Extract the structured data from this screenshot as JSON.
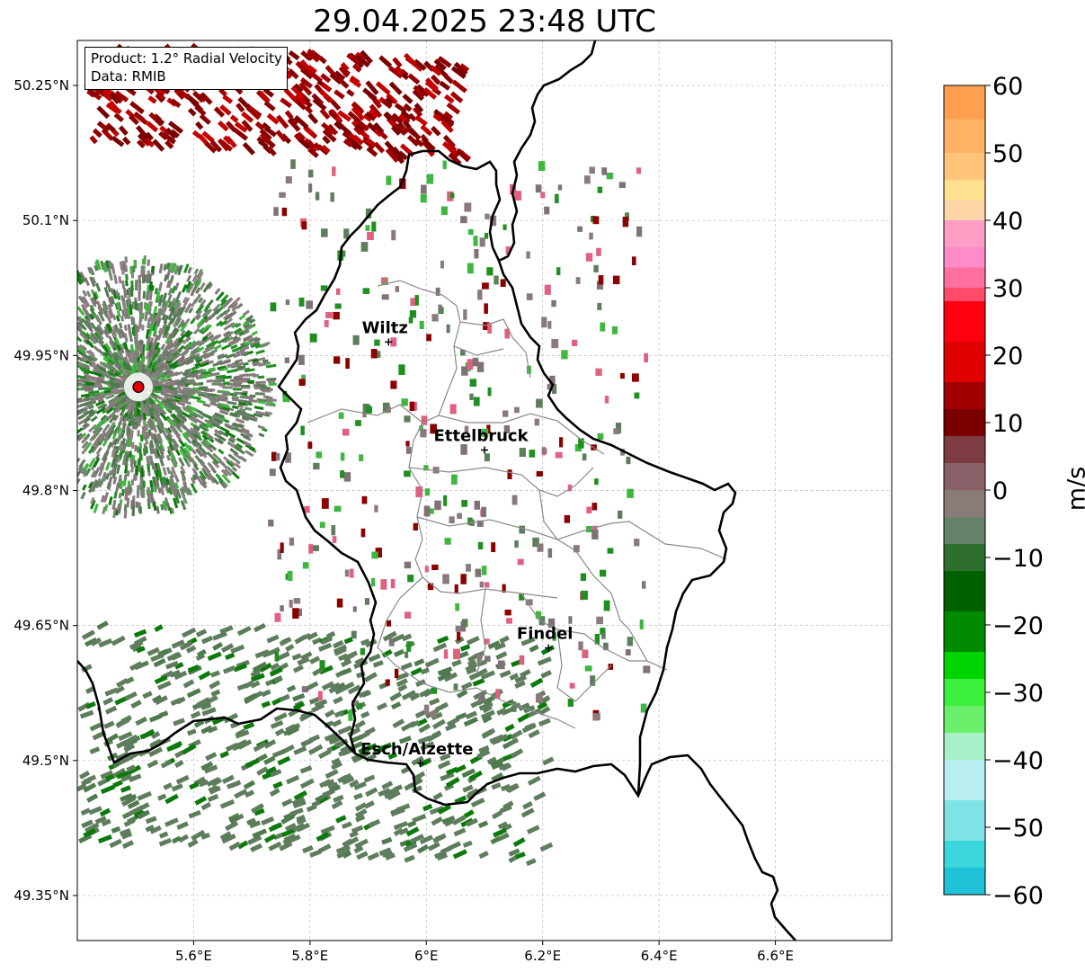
{
  "title": "29.04.2025 23:48 UTC",
  "info_box": {
    "product": "Product: 1.2° Radial Velocity",
    "source": "Data: RMIB"
  },
  "map": {
    "lon_range": [
      5.4,
      6.8
    ],
    "lat_range": [
      49.3,
      50.3
    ],
    "lon_ticks": [
      "5.6°E",
      "5.8°E",
      "6°E",
      "6.2°E",
      "6.4°E",
      "6.6°E"
    ],
    "lat_ticks": [
      "50.25°N",
      "50.1°N",
      "49.95°N",
      "49.8°N",
      "49.65°N",
      "49.5°N",
      "49.35°N"
    ],
    "grid": true,
    "radar_site": {
      "lon": 5.505,
      "lat": 49.915,
      "color": "#e00000"
    },
    "cities": [
      {
        "name": "Wiltz",
        "lon": 5.935,
        "lat": 49.965
      },
      {
        "name": "Ettelbruck",
        "lon": 6.1,
        "lat": 49.845
      },
      {
        "name": "Findel",
        "lon": 6.21,
        "lat": 49.625
      },
      {
        "name": "Esch/Alzette",
        "lon": 5.99,
        "lat": 49.497
      }
    ]
  },
  "colorbar": {
    "label": "m/s",
    "min": -60,
    "max": 60,
    "ticks": [
      "60",
      "50",
      "40",
      "30",
      "20",
      "10",
      "0",
      "−10",
      "−20",
      "−30",
      "−40",
      "−50",
      "−60"
    ]
  }
}
